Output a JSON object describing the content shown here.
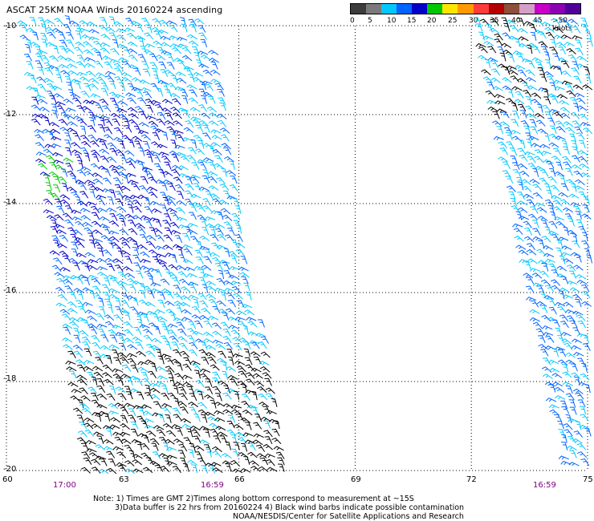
{
  "title": "ASCAT 25KM NOAA Winds 20160224 ascending",
  "legend": {
    "colors": [
      "#3c3c3c",
      "#7a7a7a",
      "#00c8ff",
      "#0064ff",
      "#0000c8",
      "#00c800",
      "#ffe600",
      "#ff9a00",
      "#ff3c3c",
      "#b40000",
      "#8c503c",
      "#d2a0c8",
      "#c800c8",
      "#8c00b4",
      "#50009a"
    ],
    "labels": [
      "0",
      "5",
      "10",
      "15",
      "20",
      "25",
      "30",
      "35",
      "40",
      "45",
      ">50 knots"
    ]
  },
  "axes": {
    "y_labels": [
      "-10",
      "-12",
      "-14",
      "-16",
      "-18",
      "-20"
    ],
    "x_labels": [
      "60",
      "63",
      "66",
      "69",
      "72",
      "75"
    ]
  },
  "times": [
    "17:00",
    "16:59",
    "16:59"
  ],
  "notes": {
    "line1": "Note: 1) Times are GMT 2)Times along bottom correspond to measurement at ~15S",
    "line2": "3)Data buffer is 22 hrs from 20160224 4) Black wind barbs indicate possible contamination",
    "line3": "NOAA/NESDIS/Center for Satellite Applications and Research"
  }
}
